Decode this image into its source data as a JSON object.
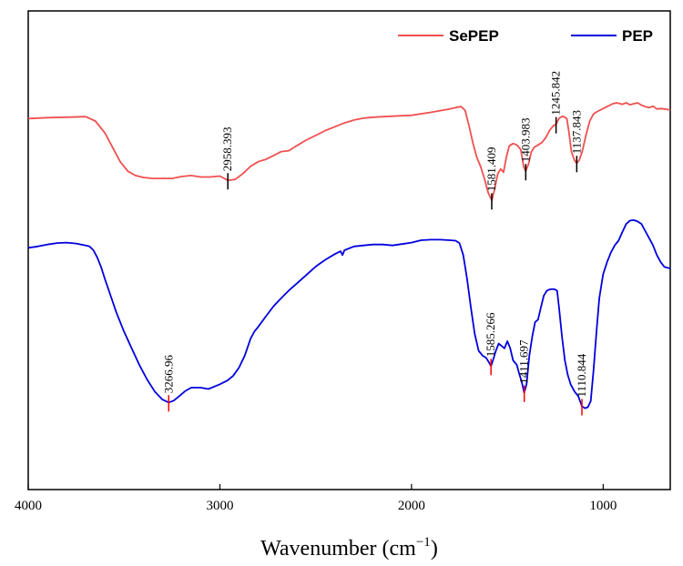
{
  "chart_data": {
    "type": "line",
    "title": "",
    "xlabel": "Wavenumber (cm",
    "xlabel_sup": "−1",
    "xlabel_close": ")",
    "ylabel": "",
    "xlim": [
      4000,
      650
    ],
    "x_reversed": true,
    "ylim": [
      0,
      100
    ],
    "y_ticks_visible": false,
    "x_ticks": [
      4000,
      3000,
      2000,
      1000
    ],
    "x_tick_labels": [
      "4000",
      "3000",
      "2000",
      "1000"
    ],
    "grid": false,
    "legend_position": "top-right",
    "series": [
      {
        "name": "SePEP",
        "color": "#f05050",
        "points": [
          [
            4000,
            77.5
          ],
          [
            3900,
            77.7
          ],
          [
            3800,
            77.8
          ],
          [
            3700,
            77.9
          ],
          [
            3650,
            77.0
          ],
          [
            3600,
            74.5
          ],
          [
            3560,
            71.5
          ],
          [
            3520,
            68.5
          ],
          [
            3480,
            66.5
          ],
          [
            3440,
            65.6
          ],
          [
            3400,
            65.2
          ],
          [
            3350,
            65.0
          ],
          [
            3300,
            65.0
          ],
          [
            3250,
            65.0
          ],
          [
            3200,
            65.4
          ],
          [
            3150,
            65.6
          ],
          [
            3100,
            65.3
          ],
          [
            3050,
            65.3
          ],
          [
            3000,
            65.5
          ],
          [
            2958,
            64.6
          ],
          [
            2920,
            64.8
          ],
          [
            2880,
            66.0
          ],
          [
            2840,
            67.5
          ],
          [
            2800,
            68.5
          ],
          [
            2760,
            69.0
          ],
          [
            2720,
            69.8
          ],
          [
            2680,
            70.6
          ],
          [
            2640,
            70.8
          ],
          [
            2600,
            71.8
          ],
          [
            2550,
            73.0
          ],
          [
            2500,
            74.0
          ],
          [
            2450,
            75.0
          ],
          [
            2400,
            75.8
          ],
          [
            2350,
            76.6
          ],
          [
            2300,
            77.2
          ],
          [
            2250,
            77.6
          ],
          [
            2200,
            77.8
          ],
          [
            2100,
            78.0
          ],
          [
            2000,
            78.2
          ],
          [
            1900,
            78.8
          ],
          [
            1800,
            79.5
          ],
          [
            1760,
            79.9
          ],
          [
            1740,
            80.0
          ],
          [
            1720,
            79.2
          ],
          [
            1700,
            76.0
          ],
          [
            1680,
            72.5
          ],
          [
            1660,
            69.5
          ],
          [
            1640,
            67.5
          ],
          [
            1620,
            65.0
          ],
          [
            1600,
            62.0
          ],
          [
            1581,
            60.4
          ],
          [
            1565,
            63.0
          ],
          [
            1550,
            66.0
          ],
          [
            1535,
            67.0
          ],
          [
            1520,
            66.3
          ],
          [
            1505,
            69.5
          ],
          [
            1490,
            71.8
          ],
          [
            1470,
            72.3
          ],
          [
            1450,
            72.0
          ],
          [
            1430,
            71.0
          ],
          [
            1415,
            67.5
          ],
          [
            1404,
            66.5
          ],
          [
            1390,
            68.0
          ],
          [
            1375,
            70.5
          ],
          [
            1360,
            71.5
          ],
          [
            1340,
            72.0
          ],
          [
            1320,
            72.5
          ],
          [
            1300,
            73.5
          ],
          [
            1280,
            75.0
          ],
          [
            1260,
            76.0
          ],
          [
            1246,
            76.3
          ],
          [
            1230,
            77.6
          ],
          [
            1210,
            78.0
          ],
          [
            1190,
            77.5
          ],
          [
            1180,
            75.0
          ],
          [
            1165,
            70.5
          ],
          [
            1150,
            68.8
          ],
          [
            1138,
            68.2
          ],
          [
            1125,
            68.8
          ],
          [
            1110,
            70.5
          ],
          [
            1090,
            74.0
          ],
          [
            1070,
            77.0
          ],
          [
            1050,
            78.5
          ],
          [
            1030,
            79.0
          ],
          [
            1000,
            79.6
          ],
          [
            980,
            80.0
          ],
          [
            950,
            80.6
          ],
          [
            930,
            80.8
          ],
          [
            900,
            80.5
          ],
          [
            880,
            80.8
          ],
          [
            860,
            80.4
          ],
          [
            840,
            80.6
          ],
          [
            820,
            80.8
          ],
          [
            800,
            80.3
          ],
          [
            780,
            80.0
          ],
          [
            760,
            79.8
          ],
          [
            740,
            80.1
          ],
          [
            720,
            79.5
          ],
          [
            700,
            79.6
          ],
          [
            680,
            79.5
          ],
          [
            650,
            79.3
          ]
        ],
        "peaks": [
          {
            "x": 2958.393,
            "label": "2958.393",
            "y": 64.6
          },
          {
            "x": 1581.409,
            "label": "1581.409",
            "y": 60.4
          },
          {
            "x": 1403.983,
            "label": "1403.983",
            "y": 66.5
          },
          {
            "x": 1245.842,
            "label": "1245.842",
            "y": 76.3
          },
          {
            "x": 1137.843,
            "label": "1137.843",
            "y": 68.2
          }
        ]
      },
      {
        "name": "PEP",
        "color": "#0000dd",
        "points": [
          [
            4000,
            50.5
          ],
          [
            3950,
            50.8
          ],
          [
            3900,
            51.2
          ],
          [
            3850,
            51.5
          ],
          [
            3800,
            51.6
          ],
          [
            3750,
            51.4
          ],
          [
            3700,
            51.0
          ],
          [
            3680,
            50.8
          ],
          [
            3660,
            50.0
          ],
          [
            3640,
            48.5
          ],
          [
            3620,
            46.5
          ],
          [
            3600,
            44.0
          ],
          [
            3570,
            40.5
          ],
          [
            3540,
            37.0
          ],
          [
            3500,
            33.0
          ],
          [
            3460,
            29.5
          ],
          [
            3420,
            26.0
          ],
          [
            3380,
            23.0
          ],
          [
            3340,
            20.5
          ],
          [
            3300,
            18.8
          ],
          [
            3267,
            18.2
          ],
          [
            3240,
            18.6
          ],
          [
            3210,
            19.6
          ],
          [
            3180,
            20.6
          ],
          [
            3150,
            21.3
          ],
          [
            3100,
            21.3
          ],
          [
            3060,
            21.0
          ],
          [
            3030,
            21.5
          ],
          [
            3000,
            22.0
          ],
          [
            2960,
            22.8
          ],
          [
            2930,
            23.8
          ],
          [
            2900,
            25.5
          ],
          [
            2870,
            28.0
          ],
          [
            2840,
            31.5
          ],
          [
            2820,
            33.0
          ],
          [
            2800,
            34.0
          ],
          [
            2760,
            36.2
          ],
          [
            2720,
            38.3
          ],
          [
            2680,
            40.0
          ],
          [
            2640,
            41.6
          ],
          [
            2600,
            43.0
          ],
          [
            2550,
            44.8
          ],
          [
            2500,
            46.6
          ],
          [
            2450,
            48.0
          ],
          [
            2400,
            49.2
          ],
          [
            2370,
            49.8
          ],
          [
            2360,
            49.0
          ],
          [
            2350,
            50.0
          ],
          [
            2300,
            50.8
          ],
          [
            2250,
            51.0
          ],
          [
            2200,
            51.2
          ],
          [
            2150,
            51.2
          ],
          [
            2100,
            51.0
          ],
          [
            2050,
            51.3
          ],
          [
            2000,
            51.6
          ],
          [
            1950,
            52.1
          ],
          [
            1900,
            52.2
          ],
          [
            1850,
            52.2
          ],
          [
            1800,
            52.1
          ],
          [
            1770,
            52.0
          ],
          [
            1750,
            51.5
          ],
          [
            1730,
            49.0
          ],
          [
            1710,
            44.0
          ],
          [
            1690,
            38.0
          ],
          [
            1670,
            32.5
          ],
          [
            1650,
            29.0
          ],
          [
            1630,
            28.0
          ],
          [
            1610,
            27.5
          ],
          [
            1595,
            26.5
          ],
          [
            1585,
            25.8
          ],
          [
            1575,
            27.0
          ],
          [
            1560,
            29.0
          ],
          [
            1545,
            30.5
          ],
          [
            1530,
            30.0
          ],
          [
            1515,
            29.5
          ],
          [
            1500,
            31.0
          ],
          [
            1485,
            29.5
          ],
          [
            1470,
            27.0
          ],
          [
            1450,
            26.0
          ],
          [
            1440,
            24.5
          ],
          [
            1425,
            22.5
          ],
          [
            1412,
            20.2
          ],
          [
            1400,
            22.0
          ],
          [
            1385,
            28.0
          ],
          [
            1370,
            32.0
          ],
          [
            1355,
            35.0
          ],
          [
            1340,
            35.5
          ],
          [
            1325,
            38.0
          ],
          [
            1310,
            40.5
          ],
          [
            1295,
            41.5
          ],
          [
            1280,
            41.8
          ],
          [
            1265,
            41.9
          ],
          [
            1250,
            41.8
          ],
          [
            1240,
            41.5
          ],
          [
            1230,
            38.0
          ],
          [
            1215,
            32.0
          ],
          [
            1200,
            27.0
          ],
          [
            1185,
            24.0
          ],
          [
            1170,
            22.0
          ],
          [
            1150,
            20.5
          ],
          [
            1130,
            19.5
          ],
          [
            1111,
            17.4
          ],
          [
            1095,
            17.0
          ],
          [
            1080,
            17.2
          ],
          [
            1065,
            18.5
          ],
          [
            1050,
            25.0
          ],
          [
            1035,
            33.0
          ],
          [
            1020,
            40.0
          ],
          [
            1000,
            45.0
          ],
          [
            980,
            47.5
          ],
          [
            960,
            49.5
          ],
          [
            940,
            51.0
          ],
          [
            920,
            52.0
          ],
          [
            900,
            53.8
          ],
          [
            880,
            55.5
          ],
          [
            860,
            56.2
          ],
          [
            840,
            56.3
          ],
          [
            820,
            56.0
          ],
          [
            800,
            55.5
          ],
          [
            780,
            54.0
          ],
          [
            760,
            52.5
          ],
          [
            740,
            51.0
          ],
          [
            720,
            49.0
          ],
          [
            700,
            47.5
          ],
          [
            680,
            46.5
          ],
          [
            650,
            46.2
          ]
        ],
        "peaks": [
          {
            "x": 3266.96,
            "label": "3266.96",
            "y": 18.2
          },
          {
            "x": 1585.266,
            "label": "1585.266",
            "y": 25.8
          },
          {
            "x": 1411.697,
            "label": "1411.697",
            "y": 20.2
          },
          {
            "x": 1110.844,
            "label": "1110.844",
            "y": 17.4
          }
        ]
      }
    ]
  }
}
